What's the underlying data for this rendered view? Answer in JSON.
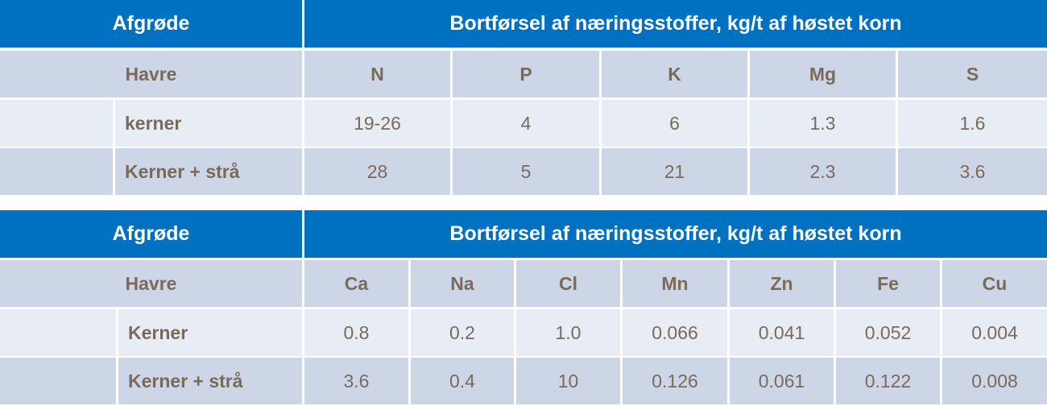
{
  "tables": [
    {
      "header": {
        "crop": "Afgrøde",
        "title": "Bortførsel af næringsstoffer, kg/t af høstet korn"
      },
      "columns": {
        "crop": "Havre",
        "nutrients": [
          "N",
          "P",
          "K",
          "Mg",
          "S"
        ]
      },
      "rows": [
        {
          "label": "kerner",
          "values": [
            "19-26",
            "4",
            "6",
            "1.3",
            "1.6"
          ]
        },
        {
          "label": "Kerner + strå",
          "values": [
            "28",
            "5",
            "21",
            "2.3",
            "3.6"
          ]
        }
      ]
    },
    {
      "header": {
        "crop": "Afgrøde",
        "title": "Bortførsel af næringsstoffer, kg/t af høstet korn"
      },
      "columns": {
        "crop": "Havre",
        "nutrients": [
          "Ca",
          "Na",
          "Cl",
          "Mn",
          "Zn",
          "Fe",
          "Cu"
        ]
      },
      "rows": [
        {
          "label": "Kerner",
          "values": [
            "0.8",
            "0.2",
            "1.0",
            "0.066",
            "0.041",
            "0.052",
            "0.004"
          ]
        },
        {
          "label": "Kerner + strå",
          "values": [
            "3.6",
            "0.4",
            "10",
            "0.126",
            "0.061",
            "0.122",
            "0.008"
          ]
        }
      ]
    }
  ]
}
